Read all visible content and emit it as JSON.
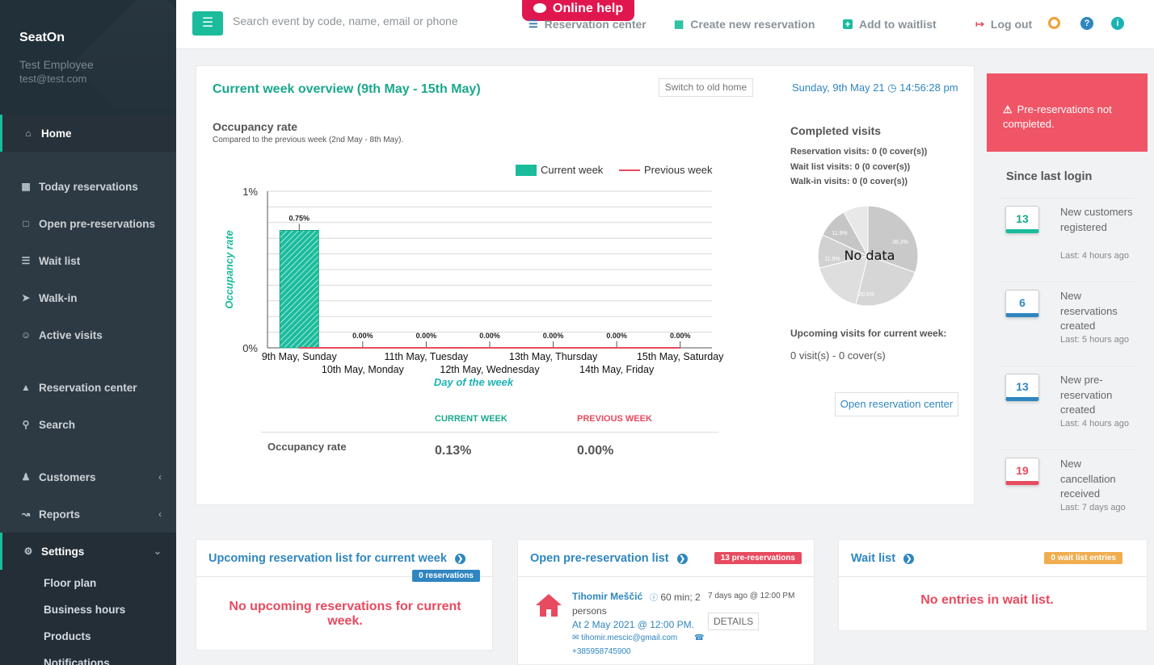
{
  "sidebar": {
    "brand": "SeatOn",
    "user_name": "Test Employee",
    "user_email": "test@test.com",
    "items": [
      {
        "label": "Home",
        "icon": "home-icon"
      },
      {
        "label": "Today reservations",
        "icon": "calendar-icon"
      },
      {
        "label": "Open pre-reservations",
        "icon": "calendar-icon"
      },
      {
        "label": "Wait list",
        "icon": "list-icon"
      },
      {
        "label": "Walk-in",
        "icon": "arrow-circle-icon"
      },
      {
        "label": "Active visits",
        "icon": "smile-icon"
      },
      {
        "label": "Reservation center",
        "icon": "bank-icon"
      },
      {
        "label": "Search",
        "icon": "search-icon"
      },
      {
        "label": "Customers",
        "icon": "users-icon"
      },
      {
        "label": "Reports",
        "icon": "chart-icon"
      },
      {
        "label": "Settings",
        "icon": "gears-icon"
      }
    ],
    "settings_sub": [
      "Floor plan",
      "Business hours",
      "Products",
      "Notifications"
    ]
  },
  "topbar": {
    "search_placeholder": "Search event by code, name, email or phone",
    "online_help": "Online help",
    "reservation_center": "Reservation center",
    "create_reservation": "Create new reservation",
    "add_waitlist": "Add to waitlist",
    "logout": "Log out"
  },
  "overview": {
    "title": "Current week overview (9th May - 15th May)",
    "old_home": "Switch to old home",
    "date": "Sunday, 9th May 21",
    "time": "14:56:28 pm",
    "occupancy_title": "Occupancy rate",
    "occupancy_sub": "Compared to the previous week (2nd May - 8th May).",
    "table": {
      "col_current": "CURRENT WEEK",
      "col_previous": "PREVIOUS WEEK",
      "row_label": "Occupancy rate",
      "current_value": "0.13%",
      "previous_value": "0.00%"
    },
    "completed_title": "Completed visits",
    "reservation_visits": "Reservation visits: 0 (0 cover(s))",
    "waitlist_visits": "Wait list visits: 0 (0 cover(s))",
    "walkin_visits": "Walk-in visits: 0 (0 cover(s))",
    "pie_no_data": "No data",
    "pie_labels": [
      "36.3%",
      "20.5%",
      "11.9%",
      "11.9%"
    ],
    "upcoming_title": "Upcoming visits for current week:",
    "upcoming_value": "0 visit(s) - 0 cover(s)",
    "open_rc": "Open reservation center"
  },
  "chart_data": {
    "type": "bar",
    "categories": [
      "9th May, Sunday",
      "10th May, Monday",
      "11th May, Tuesday",
      "12th May, Wednesday",
      "13th May, Thursday",
      "14th May, Friday",
      "15th May, Saturday"
    ],
    "series": [
      {
        "name": "Current week",
        "values": [
          0.75,
          0,
          0,
          0,
          0,
          0,
          0
        ],
        "color": "#1abc9c"
      },
      {
        "name": "Previous week",
        "values": [
          0,
          0,
          0,
          0,
          0,
          0,
          0
        ],
        "color": "#e84a5f"
      }
    ],
    "data_labels": [
      "0.75%",
      "0.00%",
      "0.00%",
      "0.00%",
      "0.00%",
      "0.00%",
      "0.00%"
    ],
    "y_ticks": [
      "0%",
      "1%"
    ],
    "ylim": [
      0,
      1
    ],
    "xlabel": "Day of the week",
    "ylabel": "Occupancy rate",
    "legend_position": "top-right"
  },
  "right_panel": {
    "alert": "Pre-reservations not completed.",
    "since_title": "Since last login",
    "items": [
      {
        "count": "13",
        "text": "New customers registered",
        "time": "Last: 4 hours ago"
      },
      {
        "count": "6",
        "text": "New reservations created",
        "time": "Last: 5 hours ago"
      },
      {
        "count": "13",
        "text": "New pre-reservation created",
        "time": "Last: 4 hours ago"
      },
      {
        "count": "19",
        "text": "New cancellation received",
        "time": "Last: 7 days ago"
      }
    ]
  },
  "bottom": {
    "upcoming": {
      "title": "Upcoming reservation list for current week",
      "badge": "0 reservations",
      "empty": "No upcoming reservations for current week."
    },
    "prereservation": {
      "title": "Open pre-reservation list",
      "badge": "13 pre-reservations",
      "entry": {
        "name": "Tihomir Meščić",
        "duration": "60 min; 2",
        "persons": "persons",
        "ago": "7 days ago @ 12:00 PM",
        "at": "At 2 May 2021 @ 12:00 PM.",
        "details": "DETAILS",
        "email": "tihomir.mescic@gmail.com",
        "phone": "+385958745900"
      }
    },
    "waitlist": {
      "title": "Wait list",
      "badge": "0 wait list entries",
      "empty": "No entries in wait list."
    }
  }
}
